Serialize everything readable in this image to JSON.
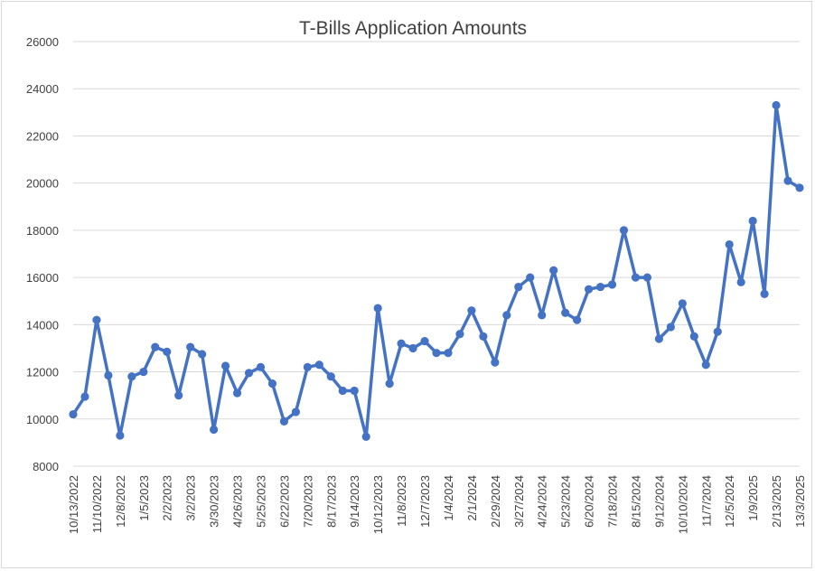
{
  "chart_data": {
    "type": "line",
    "title": "T-Bills Application Amounts",
    "xlabel": "",
    "ylabel": "",
    "ylim": [
      8000,
      26000
    ],
    "y_ticks": [
      8000,
      10000,
      12000,
      14000,
      16000,
      18000,
      20000,
      22000,
      24000,
      26000
    ],
    "grid": "horizontal",
    "legend": "none",
    "line_color": "#4472C4",
    "x_tick_labels": [
      "10/13/2022",
      "11/10/2022",
      "12/8/2022",
      "1/5/2023",
      "2/2/2023",
      "3/2/2023",
      "3/30/2023",
      "4/26/2023",
      "5/25/2023",
      "6/22/2023",
      "7/20/2023",
      "8/17/2023",
      "9/14/2023",
      "10/12/2023",
      "11/8/2023",
      "12/7/2023",
      "1/4/2024",
      "2/1/2024",
      "2/29/2024",
      "3/27/2024",
      "4/24/2024",
      "5/23/2024",
      "6/20/2024",
      "7/18/2024",
      "8/15/2024",
      "9/12/2024",
      "10/10/2024",
      "11/7/2024",
      "12/5/2024",
      "1/9/2025",
      "2/13/2025",
      "13/3/2025"
    ],
    "values": [
      10200,
      10950,
      14200,
      11850,
      9300,
      11800,
      12000,
      13050,
      12850,
      11000,
      13050,
      12750,
      9550,
      12250,
      11100,
      11950,
      12200,
      11500,
      9900,
      10300,
      12200,
      12300,
      11800,
      11200,
      11200,
      9250,
      14700,
      11500,
      13200,
      13000,
      13300,
      12800,
      12800,
      13600,
      14600,
      13500,
      12400,
      14400,
      15600,
      16000,
      14400,
      16300,
      14500,
      14200,
      15500,
      15600,
      15700,
      18000,
      16000,
      16000,
      13400,
      13900,
      14900,
      13500,
      12300,
      13700,
      17400,
      15800,
      18400,
      15300,
      23300,
      20100,
      19800
    ]
  }
}
